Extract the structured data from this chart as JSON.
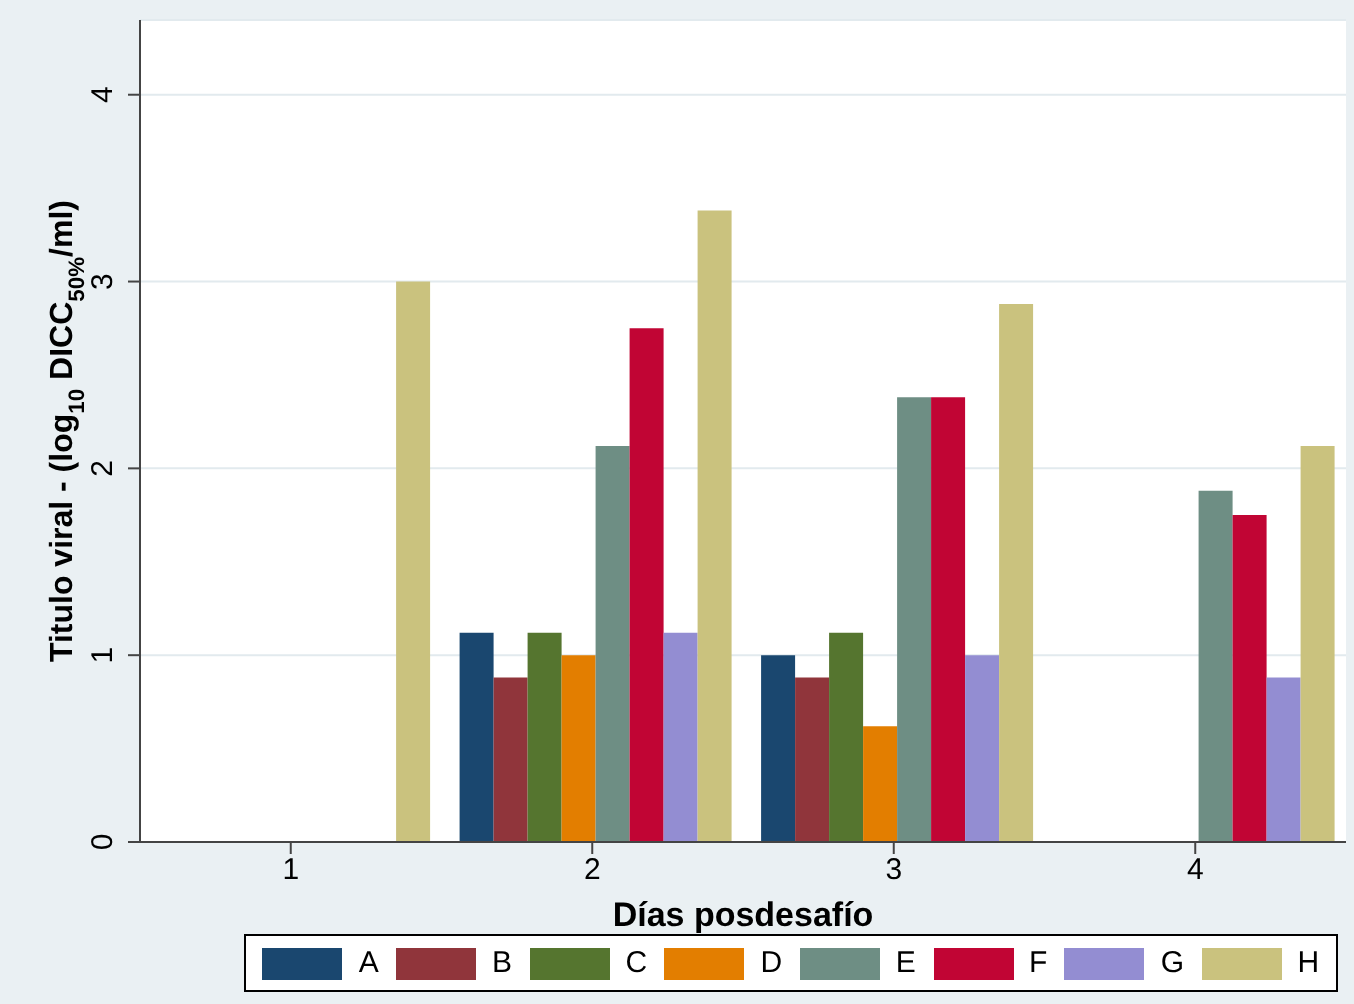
{
  "chart_data": {
    "type": "bar",
    "xlabel": "Días posdesafío",
    "ylabel": "Titulo viral - (log$_{10}$ DICC$_{50%}$/ml)",
    "categories": [
      "1",
      "2",
      "3",
      "4"
    ],
    "series": [
      {
        "name": "A",
        "color": "#1a476f",
        "values": [
          null,
          1.12,
          1.0,
          null
        ]
      },
      {
        "name": "B",
        "color": "#90353b",
        "values": [
          null,
          0.88,
          0.88,
          null
        ]
      },
      {
        "name": "C",
        "color": "#55752f",
        "values": [
          null,
          1.12,
          1.12,
          null
        ]
      },
      {
        "name": "D",
        "color": "#e37e00",
        "values": [
          null,
          1.0,
          0.62,
          null
        ]
      },
      {
        "name": "E",
        "color": "#6e8e84",
        "values": [
          null,
          2.12,
          2.38,
          1.88
        ]
      },
      {
        "name": "F",
        "color": "#c10534",
        "values": [
          null,
          2.75,
          2.38,
          1.75
        ]
      },
      {
        "name": "G",
        "color": "#938dd2",
        "values": [
          null,
          1.12,
          1.0,
          0.88
        ]
      },
      {
        "name": "H",
        "color": "#cac27e",
        "values": [
          3.0,
          3.38,
          2.88,
          2.12
        ]
      }
    ],
    "ylim": [
      0,
      4.4
    ],
    "yticks": [
      0,
      1,
      2,
      3,
      4
    ],
    "grid": "y",
    "legend": "bottom"
  }
}
